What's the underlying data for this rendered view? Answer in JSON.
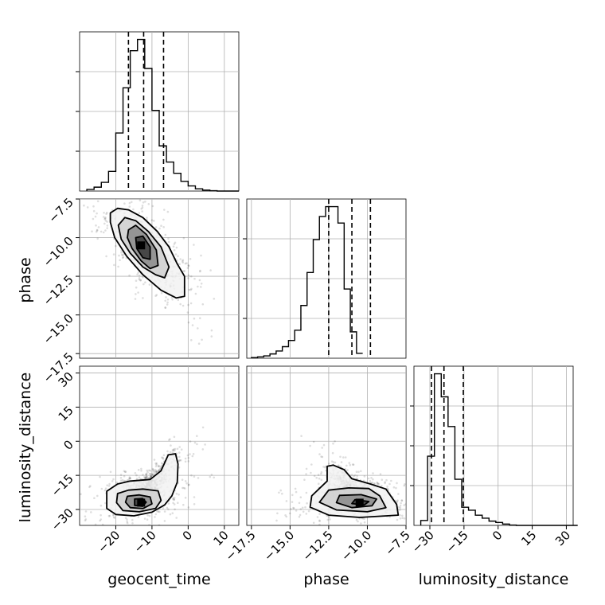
{
  "chart_data": {
    "type": "corner",
    "parameters": [
      "geocent_time",
      "phase",
      "luminosity_distance"
    ],
    "ranges": {
      "geocent_time": [
        -30,
        14
      ],
      "phase": [
        -17.8,
        -7.5
      ],
      "luminosity_distance": [
        -37,
        33
      ]
    },
    "ticks": {
      "geocent_time": [
        -20,
        -10,
        0,
        10
      ],
      "phase": [
        -17.5,
        -15.0,
        -12.5,
        -10.0,
        -7.5
      ],
      "luminosity_distance": [
        -30,
        -15,
        0,
        15,
        30
      ]
    },
    "tick_labels": {
      "geocent_time": [
        "−20",
        "−10",
        "0",
        "10"
      ],
      "phase": [
        "−17.5",
        "−15.0",
        "−12.5",
        "−10.0",
        "−7.5"
      ],
      "luminosity_distance": [
        "−30",
        "−15",
        "0",
        "15",
        "30"
      ]
    },
    "grid": true,
    "histograms": [
      {
        "parameter": "geocent_time",
        "bin_start": -28,
        "bin_width": 2,
        "counts": [
          0.5,
          1.2,
          2.7,
          6.1,
          18,
          32,
          43.5,
          47,
          38,
          25,
          14,
          9,
          5.5,
          3,
          1.6,
          0.7,
          0.3,
          0.1,
          0,
          0,
          0
        ],
        "quantiles": [
          -16.5,
          -12.3,
          -6.8
        ]
      },
      {
        "parameter": "phase",
        "bin_start": -17.5,
        "bin_width": 0.4,
        "counts": [
          0.2,
          0.4,
          0.7,
          1.3,
          2.2,
          3.5,
          5.4,
          8.5,
          16,
          26,
          36,
          43,
          46,
          46,
          41,
          21,
          8,
          1.5
        ],
        "quantiles": [
          -12.5,
          -11.0,
          -9.8
        ]
      },
      {
        "parameter": "luminosity_distance",
        "bin_start": -34,
        "bin_width": 3,
        "counts": [
          1.5,
          21,
          46,
          39,
          30,
          14,
          5.5,
          4.6,
          3.1,
          2.2,
          1.3,
          0.9,
          0.4,
          0.1,
          0,
          0,
          0,
          0,
          0,
          0,
          0,
          0,
          0
        ],
        "quantiles": [
          -29.3,
          -23.8,
          -15.3
        ]
      }
    ],
    "joint": [
      {
        "x": "geocent_time",
        "y": "phase",
        "scatter_center": [
          -12,
          -10.8
        ],
        "density_peak": [
          -13,
          -10.5
        ],
        "contours": [
          [
            [
              -21.5,
              -8.4
            ],
            [
              -19.5,
              -8.1
            ],
            [
              -16.5,
              -8.2
            ],
            [
              -12.5,
              -8.7
            ],
            [
              -8.5,
              -9.6
            ],
            [
              -5.3,
              -10.6
            ],
            [
              -3.0,
              -11.7
            ],
            [
              -1.0,
              -12.5
            ],
            [
              -1.0,
              -13.8
            ],
            [
              -3.3,
              -13.9
            ],
            [
              -7.5,
              -13.4
            ],
            [
              -12.5,
              -12.4
            ],
            [
              -17.0,
              -11.2
            ],
            [
              -20.3,
              -10.0
            ],
            [
              -21.5,
              -9.0
            ]
          ],
          [
            [
              -19.3,
              -9.2
            ],
            [
              -17.5,
              -8.7
            ],
            [
              -14.5,
              -8.9
            ],
            [
              -11.0,
              -9.6
            ],
            [
              -7.5,
              -10.6
            ],
            [
              -5.3,
              -11.9
            ],
            [
              -6.5,
              -12.6
            ],
            [
              -9.0,
              -12.4
            ],
            [
              -12.5,
              -11.9
            ],
            [
              -16.0,
              -11.0
            ],
            [
              -18.5,
              -10.1
            ]
          ],
          [
            [
              -16.5,
              -9.5
            ],
            [
              -14.5,
              -9.2
            ],
            [
              -11.5,
              -9.8
            ],
            [
              -8.8,
              -10.8
            ],
            [
              -8.3,
              -11.8
            ],
            [
              -10.5,
              -12.0
            ],
            [
              -13.0,
              -11.5
            ],
            [
              -15.5,
              -10.7
            ],
            [
              -16.8,
              -10.0
            ]
          ],
          [
            [
              -14.5,
              -10.0
            ],
            [
              -12.5,
              -9.9
            ],
            [
              -10.5,
              -10.6
            ],
            [
              -10.5,
              -11.4
            ],
            [
              -12.5,
              -11.3
            ],
            [
              -14.2,
              -10.7
            ]
          ]
        ]
      },
      {
        "x": "geocent_time",
        "y": "luminosity_distance",
        "scatter_center": [
          -12,
          -20
        ],
        "density_peak": [
          -13,
          -27
        ],
        "contours": [
          [
            [
              -22.5,
              -22.0
            ],
            [
              -19.5,
              -18.8
            ],
            [
              -16.0,
              -17.5
            ],
            [
              -10.5,
              -16.8
            ],
            [
              -7.5,
              -13.0
            ],
            [
              -5.5,
              -6.0
            ],
            [
              -3.5,
              -5.5
            ],
            [
              -2.8,
              -10.0
            ],
            [
              -3.0,
              -18.0
            ],
            [
              -4.5,
              -24.0
            ],
            [
              -6.5,
              -28.0
            ],
            [
              -10.0,
              -31.2
            ],
            [
              -15.0,
              -32.8
            ],
            [
              -20.0,
              -32.2
            ],
            [
              -22.5,
              -29.5
            ]
          ],
          [
            [
              -19.5,
              -23.0
            ],
            [
              -16.5,
              -21.5
            ],
            [
              -12.5,
              -21.0
            ],
            [
              -8.3,
              -21.8
            ],
            [
              -7.5,
              -26.0
            ],
            [
              -9.0,
              -29.5
            ],
            [
              -13.5,
              -31.0
            ],
            [
              -18.0,
              -30.5
            ],
            [
              -19.8,
              -27.0
            ]
          ],
          [
            [
              -16.8,
              -24.2
            ],
            [
              -13.5,
              -23.6
            ],
            [
              -10.5,
              -24.5
            ],
            [
              -10.0,
              -27.5
            ],
            [
              -12.5,
              -29.6
            ],
            [
              -16.0,
              -29.2
            ],
            [
              -17.3,
              -26.8
            ]
          ],
          [
            [
              -14.8,
              -25.4
            ],
            [
              -12.6,
              -25.2
            ],
            [
              -11.6,
              -26.8
            ],
            [
              -12.6,
              -28.6
            ],
            [
              -14.8,
              -28.2
            ]
          ]
        ]
      },
      {
        "x": "phase",
        "y": "luminosity_distance",
        "scatter_center": [
          -11.5,
          -20
        ],
        "density_peak": [
          -10.5,
          -27
        ],
        "contours": [
          [
            [
              -12.6,
              -11.0
            ],
            [
              -12.6,
              -17.5
            ],
            [
              -13.6,
              -24.0
            ],
            [
              -13.7,
              -29.0
            ],
            [
              -12.5,
              -32.5
            ],
            [
              -10.5,
              -33.5
            ],
            [
              -8.0,
              -32.5
            ],
            [
              -8.1,
              -27.8
            ],
            [
              -8.8,
              -21.0
            ],
            [
              -9.8,
              -18.8
            ],
            [
              -11.0,
              -16.5
            ],
            [
              -11.5,
              -12.5
            ],
            [
              -12.2,
              -10.5
            ]
          ],
          [
            [
              -12.5,
              -21.5
            ],
            [
              -13.1,
              -26.8
            ],
            [
              -12.0,
              -30.2
            ],
            [
              -10.0,
              -31.0
            ],
            [
              -8.8,
              -29.2
            ],
            [
              -9.2,
              -24.0
            ],
            [
              -9.9,
              -20.8
            ],
            [
              -11.2,
              -20.5
            ]
          ],
          [
            [
              -11.8,
              -23.8
            ],
            [
              -12.0,
              -27.0
            ],
            [
              -11.0,
              -29.2
            ],
            [
              -9.7,
              -28.4
            ],
            [
              -9.4,
              -25.4
            ],
            [
              -10.4,
              -23.5
            ]
          ],
          [
            [
              -10.8,
              -25.7
            ],
            [
              -11.0,
              -27.4
            ],
            [
              -10.2,
              -28.0
            ],
            [
              -9.9,
              -26.5
            ]
          ]
        ]
      }
    ],
    "xlabels": [
      "geocent_time",
      "phase",
      "luminosity_distance"
    ],
    "ylabels": [
      "phase",
      "luminosity_distance"
    ]
  }
}
